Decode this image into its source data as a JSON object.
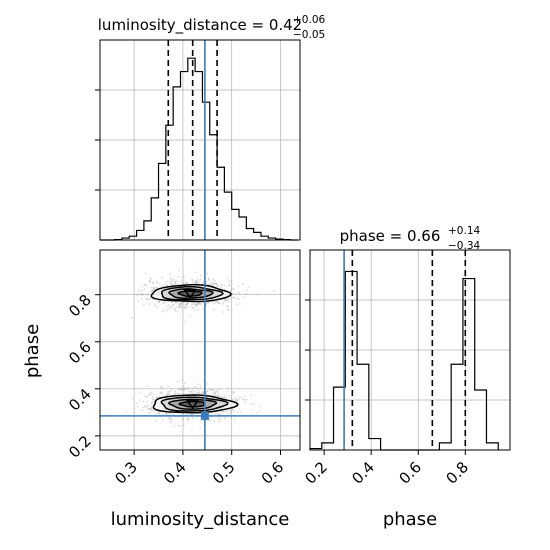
{
  "figure": {
    "truth_color": "#3b7bbf",
    "hist_color": "#000000",
    "grid_color": "#b0b0b0"
  },
  "titles": {
    "luminosity_distance": {
      "param": "luminosity_distance",
      "value": "0.42",
      "plus": "+0.06",
      "minus": "−0.05"
    },
    "phase": {
      "param": "phase",
      "value": "0.66",
      "plus": "+0.14",
      "minus": "−0.34"
    }
  },
  "axis_labels": {
    "x_left": "luminosity_distance",
    "x_right": "phase",
    "y_left": "phase"
  },
  "ticks": {
    "luminosity_distance": [
      "0.3",
      "0.4",
      "0.5",
      "0.6"
    ],
    "phase_x": [
      "0.2",
      "0.4",
      "0.6",
      "0.8"
    ],
    "phase_y": [
      "0.2",
      "0.4",
      "0.6",
      "0.8"
    ]
  },
  "chart_data": [
    {
      "type": "histogram",
      "panel": "luminosity_distance marginal",
      "parameter": "luminosity_distance",
      "xlim": [
        0.23,
        0.64
      ],
      "bin_edges": [
        0.23,
        0.245,
        0.26,
        0.275,
        0.29,
        0.305,
        0.32,
        0.335,
        0.35,
        0.365,
        0.38,
        0.395,
        0.41,
        0.425,
        0.44,
        0.455,
        0.47,
        0.485,
        0.5,
        0.515,
        0.53,
        0.545,
        0.56,
        0.575,
        0.59,
        0.605,
        0.62,
        0.635
      ],
      "counts": [
        0,
        0,
        0.2,
        1,
        2,
        5,
        10,
        22,
        40,
        60,
        80,
        88,
        95,
        88,
        72,
        55,
        38,
        25,
        16,
        12,
        6,
        4,
        2,
        1,
        0.5,
        0.2,
        0
      ],
      "quantiles": [
        0.37,
        0.42,
        0.47
      ],
      "truth": 0.445,
      "grid": true
    },
    {
      "type": "contour",
      "panel": "2D density",
      "x_parameter": "luminosity_distance",
      "y_parameter": "phase",
      "xlim": [
        0.23,
        0.64
      ],
      "ylim": [
        0.14,
        0.99
      ],
      "modes": [
        {
          "center_x": 0.415,
          "center_y": 0.805,
          "spread_x": 0.08,
          "spread_y": 0.07
        },
        {
          "center_x": 0.42,
          "center_y": 0.335,
          "spread_x": 0.085,
          "spread_y": 0.075
        }
      ],
      "truth": {
        "x": 0.445,
        "y": 0.285
      },
      "grid": true
    },
    {
      "type": "histogram",
      "panel": "phase marginal",
      "parameter": "phase",
      "xlim": [
        0.14,
        0.99
      ],
      "bin_edges": [
        0.14,
        0.19,
        0.24,
        0.29,
        0.34,
        0.39,
        0.44,
        0.49,
        0.54,
        0.59,
        0.64,
        0.69,
        0.74,
        0.79,
        0.84,
        0.89,
        0.94
      ],
      "counts": [
        1,
        5,
        44,
        125,
        60,
        8,
        0,
        0,
        0,
        0,
        0,
        5,
        60,
        120,
        42,
        5
      ],
      "quantiles": [
        0.32,
        0.66,
        0.8
      ],
      "truth": 0.285,
      "grid": true
    }
  ]
}
